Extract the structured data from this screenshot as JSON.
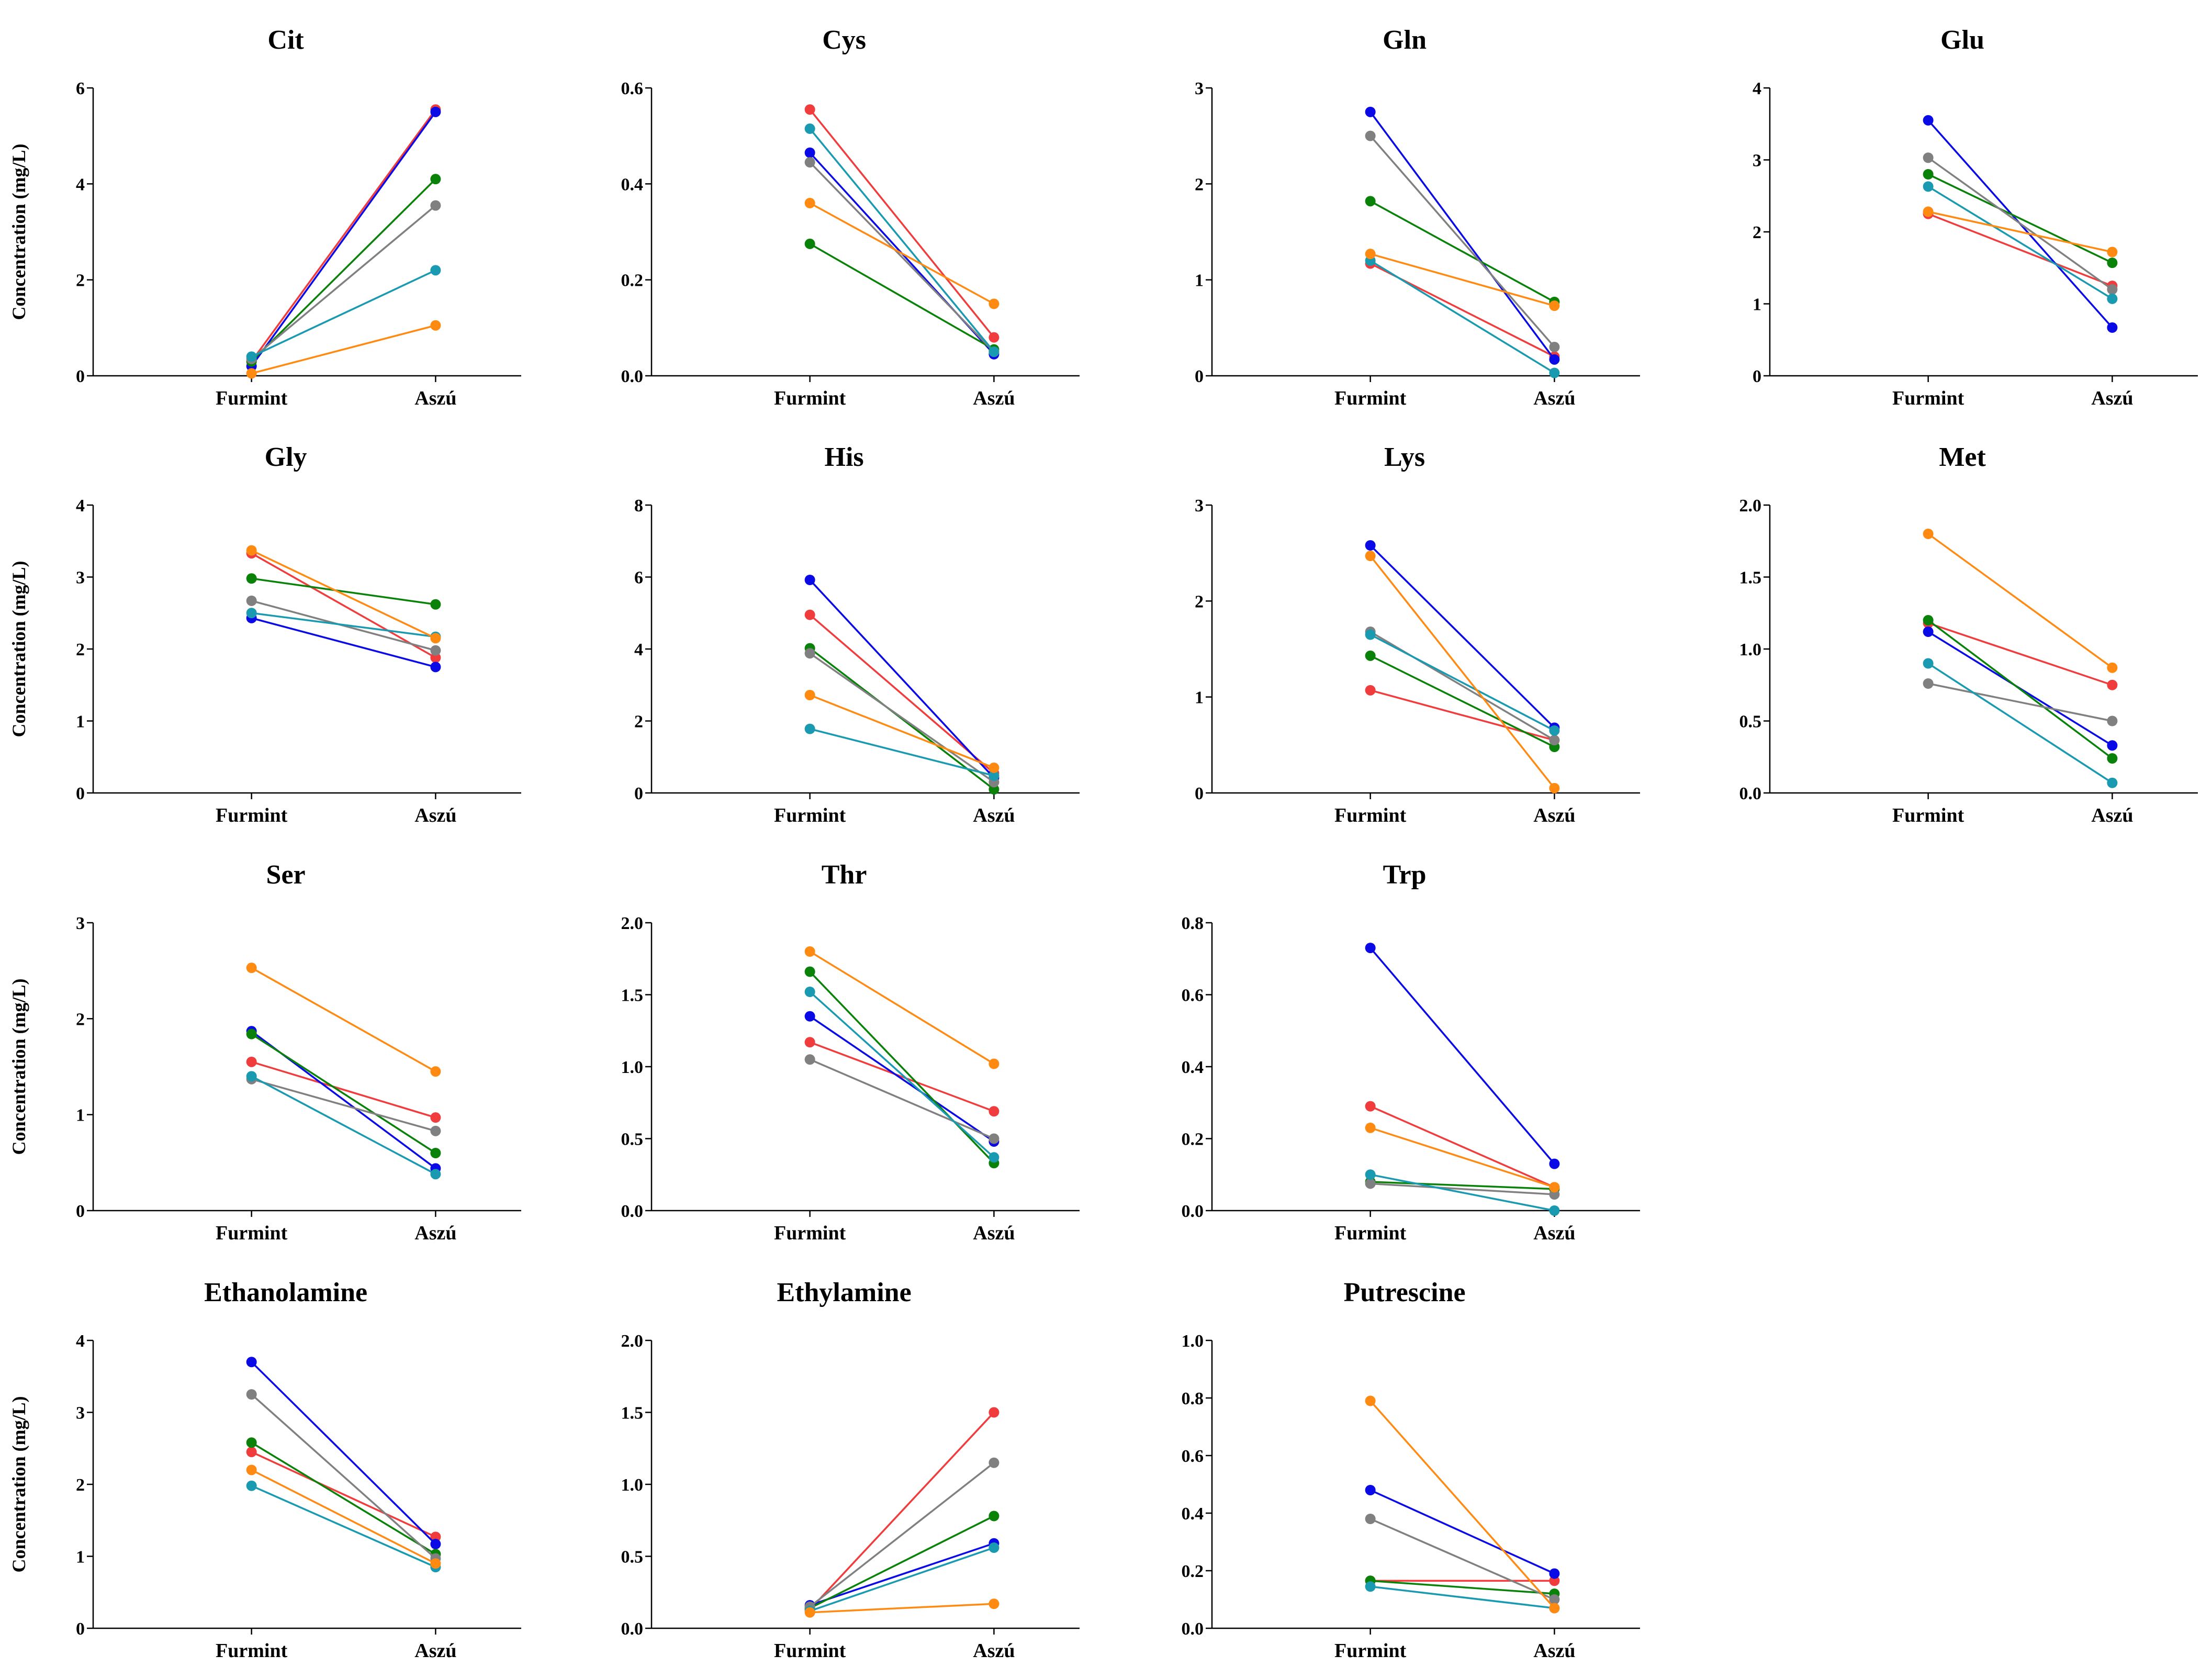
{
  "figure": {
    "ylabel": "Concentration (mg/L)",
    "categories": [
      "Furmint",
      "Aszú"
    ]
  },
  "series_colors": {
    "red": "#f03c3c",
    "blue": "#0a0ae6",
    "green": "#0a820a",
    "gray": "#808080",
    "teal": "#1a9ab0",
    "orange": "#ff8a12"
  },
  "chart_data": [
    {
      "type": "line",
      "title": "Cit",
      "ylim": [
        0,
        6
      ],
      "yticks": [
        "0",
        "2",
        "4",
        "6"
      ],
      "series": [
        {
          "name": "red",
          "values": [
            0.3,
            5.55
          ]
        },
        {
          "name": "blue",
          "values": [
            0.2,
            5.5
          ]
        },
        {
          "name": "green",
          "values": [
            0.3,
            4.1
          ]
        },
        {
          "name": "gray",
          "values": [
            0.35,
            3.55
          ]
        },
        {
          "name": "teal",
          "values": [
            0.4,
            2.2
          ]
        },
        {
          "name": "orange",
          "values": [
            0.05,
            1.05
          ]
        }
      ]
    },
    {
      "type": "line",
      "title": "Cys",
      "ylim": [
        0,
        0.6
      ],
      "yticks": [
        "0.0",
        "0.2",
        "0.4",
        "0.6"
      ],
      "series": [
        {
          "name": "red",
          "values": [
            0.555,
            0.08
          ]
        },
        {
          "name": "blue",
          "values": [
            0.465,
            0.045
          ]
        },
        {
          "name": "green",
          "values": [
            0.275,
            0.055
          ]
        },
        {
          "name": "gray",
          "values": [
            0.445,
            0.05
          ]
        },
        {
          "name": "teal",
          "values": [
            0.515,
            0.05
          ]
        },
        {
          "name": "orange",
          "values": [
            0.36,
            0.15
          ]
        }
      ]
    },
    {
      "type": "line",
      "title": "Gln",
      "ylim": [
        0,
        3
      ],
      "yticks": [
        "0",
        "1",
        "2",
        "3"
      ],
      "series": [
        {
          "name": "red",
          "values": [
            1.17,
            0.2
          ]
        },
        {
          "name": "blue",
          "values": [
            2.75,
            0.17
          ]
        },
        {
          "name": "green",
          "values": [
            1.82,
            0.77
          ]
        },
        {
          "name": "gray",
          "values": [
            2.5,
            0.3
          ]
        },
        {
          "name": "teal",
          "values": [
            1.2,
            0.03
          ]
        },
        {
          "name": "orange",
          "values": [
            1.27,
            0.73
          ]
        }
      ]
    },
    {
      "type": "line",
      "title": "Glu",
      "ylim": [
        0,
        4
      ],
      "yticks": [
        "0",
        "1",
        "2",
        "3",
        "4"
      ],
      "series": [
        {
          "name": "red",
          "values": [
            2.25,
            1.25
          ]
        },
        {
          "name": "blue",
          "values": [
            3.55,
            0.67
          ]
        },
        {
          "name": "green",
          "values": [
            2.8,
            1.57
          ]
        },
        {
          "name": "gray",
          "values": [
            3.03,
            1.2
          ]
        },
        {
          "name": "teal",
          "values": [
            2.63,
            1.07
          ]
        },
        {
          "name": "orange",
          "values": [
            2.28,
            1.72
          ]
        }
      ]
    },
    {
      "type": "line",
      "title": "Gly",
      "ylim": [
        0,
        4
      ],
      "yticks": [
        "0",
        "1",
        "2",
        "3",
        "4"
      ],
      "series": [
        {
          "name": "red",
          "values": [
            3.33,
            1.88
          ]
        },
        {
          "name": "blue",
          "values": [
            2.43,
            1.75
          ]
        },
        {
          "name": "green",
          "values": [
            2.98,
            2.62
          ]
        },
        {
          "name": "gray",
          "values": [
            2.67,
            1.98
          ]
        },
        {
          "name": "teal",
          "values": [
            2.5,
            2.17
          ]
        },
        {
          "name": "orange",
          "values": [
            3.37,
            2.15
          ]
        }
      ]
    },
    {
      "type": "line",
      "title": "His",
      "ylim": [
        0,
        8
      ],
      "yticks": [
        "0",
        "2",
        "4",
        "6",
        "8"
      ],
      "series": [
        {
          "name": "red",
          "values": [
            4.95,
            0.55
          ]
        },
        {
          "name": "blue",
          "values": [
            5.92,
            0.42
          ]
        },
        {
          "name": "green",
          "values": [
            4.02,
            0.1
          ]
        },
        {
          "name": "gray",
          "values": [
            3.88,
            0.3
          ]
        },
        {
          "name": "teal",
          "values": [
            1.78,
            0.48
          ]
        },
        {
          "name": "orange",
          "values": [
            2.72,
            0.7
          ]
        }
      ]
    },
    {
      "type": "line",
      "title": "Lys",
      "ylim": [
        0,
        3
      ],
      "yticks": [
        "0",
        "1",
        "2",
        "3"
      ],
      "series": [
        {
          "name": "red",
          "values": [
            1.07,
            0.55
          ]
        },
        {
          "name": "blue",
          "values": [
            2.58,
            0.68
          ]
        },
        {
          "name": "green",
          "values": [
            1.43,
            0.48
          ]
        },
        {
          "name": "gray",
          "values": [
            1.68,
            0.55
          ]
        },
        {
          "name": "teal",
          "values": [
            1.65,
            0.65
          ]
        },
        {
          "name": "orange",
          "values": [
            2.47,
            0.05
          ]
        }
      ]
    },
    {
      "type": "line",
      "title": "Met",
      "ylim": [
        0,
        2
      ],
      "yticks": [
        "0.0",
        "0.5",
        "1.0",
        "1.5",
        "2.0"
      ],
      "series": [
        {
          "name": "red",
          "values": [
            1.18,
            0.75
          ]
        },
        {
          "name": "blue",
          "values": [
            1.12,
            0.33
          ]
        },
        {
          "name": "green",
          "values": [
            1.2,
            0.24
          ]
        },
        {
          "name": "gray",
          "values": [
            0.76,
            0.5
          ]
        },
        {
          "name": "teal",
          "values": [
            0.9,
            0.07
          ]
        },
        {
          "name": "orange",
          "values": [
            1.8,
            0.87
          ]
        }
      ]
    },
    {
      "type": "line",
      "title": "Ser",
      "ylim": [
        0,
        3
      ],
      "yticks": [
        "0",
        "1",
        "2",
        "3"
      ],
      "series": [
        {
          "name": "red",
          "values": [
            1.55,
            0.97
          ]
        },
        {
          "name": "blue",
          "values": [
            1.87,
            0.44
          ]
        },
        {
          "name": "green",
          "values": [
            1.84,
            0.6
          ]
        },
        {
          "name": "gray",
          "values": [
            1.37,
            0.83
          ]
        },
        {
          "name": "teal",
          "values": [
            1.4,
            0.38
          ]
        },
        {
          "name": "orange",
          "values": [
            2.53,
            1.45
          ]
        }
      ]
    },
    {
      "type": "line",
      "title": "Thr",
      "ylim": [
        0,
        2
      ],
      "yticks": [
        "0.0",
        "0.5",
        "1.0",
        "1.5",
        "2.0"
      ],
      "series": [
        {
          "name": "red",
          "values": [
            1.17,
            0.69
          ]
        },
        {
          "name": "blue",
          "values": [
            1.35,
            0.48
          ]
        },
        {
          "name": "green",
          "values": [
            1.66,
            0.33
          ]
        },
        {
          "name": "gray",
          "values": [
            1.05,
            0.5
          ]
        },
        {
          "name": "teal",
          "values": [
            1.52,
            0.37
          ]
        },
        {
          "name": "orange",
          "values": [
            1.8,
            1.02
          ]
        }
      ]
    },
    {
      "type": "line",
      "title": "Trp",
      "ylim": [
        0,
        0.8
      ],
      "yticks": [
        "0.0",
        "0.2",
        "0.4",
        "0.6",
        "0.8"
      ],
      "series": [
        {
          "name": "red",
          "values": [
            0.29,
            0.065
          ]
        },
        {
          "name": "blue",
          "values": [
            0.73,
            0.13
          ]
        },
        {
          "name": "green",
          "values": [
            0.08,
            0.06
          ]
        },
        {
          "name": "gray",
          "values": [
            0.075,
            0.045
          ]
        },
        {
          "name": "teal",
          "values": [
            0.1,
            0.0
          ]
        },
        {
          "name": "orange",
          "values": [
            0.23,
            0.065
          ]
        }
      ]
    },
    {
      "type": "line",
      "title": "Ethanolamine",
      "ylim": [
        0,
        4
      ],
      "yticks": [
        "0",
        "1",
        "2",
        "3",
        "4"
      ],
      "series": [
        {
          "name": "red",
          "values": [
            2.45,
            1.27
          ]
        },
        {
          "name": "blue",
          "values": [
            3.7,
            1.17
          ]
        },
        {
          "name": "green",
          "values": [
            2.58,
            1.03
          ]
        },
        {
          "name": "gray",
          "values": [
            3.25,
            0.97
          ]
        },
        {
          "name": "teal",
          "values": [
            1.98,
            0.85
          ]
        },
        {
          "name": "orange",
          "values": [
            2.2,
            0.9
          ]
        }
      ]
    },
    {
      "type": "line",
      "title": "Ethylamine",
      "ylim": [
        0,
        2
      ],
      "yticks": [
        "0.0",
        "0.5",
        "1.0",
        "1.5",
        "2.0"
      ],
      "series": [
        {
          "name": "red",
          "values": [
            0.13,
            1.5
          ]
        },
        {
          "name": "blue",
          "values": [
            0.16,
            0.59
          ]
        },
        {
          "name": "green",
          "values": [
            0.14,
            0.78
          ]
        },
        {
          "name": "gray",
          "values": [
            0.15,
            1.15
          ]
        },
        {
          "name": "teal",
          "values": [
            0.12,
            0.56
          ]
        },
        {
          "name": "orange",
          "values": [
            0.11,
            0.17
          ]
        }
      ]
    },
    {
      "type": "line",
      "title": "Putrescine",
      "ylim": [
        0,
        1
      ],
      "yticks": [
        "0.0",
        "0.2",
        "0.4",
        "0.6",
        "0.8",
        "1.0"
      ],
      "series": [
        {
          "name": "red",
          "values": [
            0.165,
            0.165
          ]
        },
        {
          "name": "blue",
          "values": [
            0.48,
            0.19
          ]
        },
        {
          "name": "green",
          "values": [
            0.165,
            0.12
          ]
        },
        {
          "name": "gray",
          "values": [
            0.38,
            0.1
          ]
        },
        {
          "name": "teal",
          "values": [
            0.145,
            0.07
          ]
        },
        {
          "name": "orange",
          "values": [
            0.79,
            0.07
          ]
        }
      ]
    }
  ]
}
